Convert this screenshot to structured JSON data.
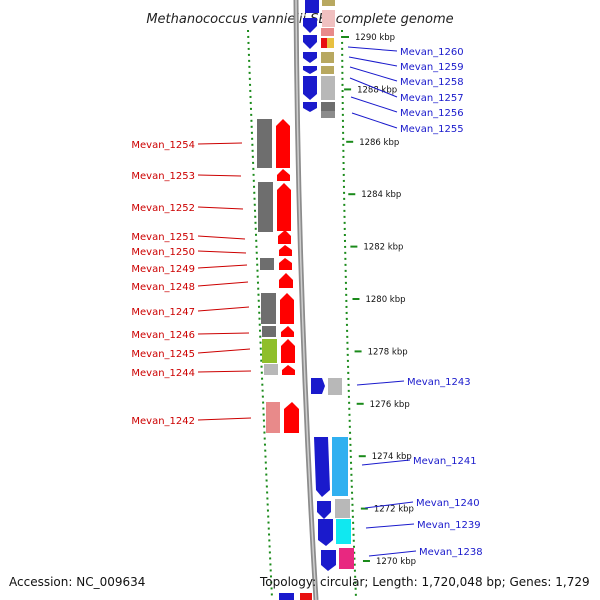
{
  "title": "Methanococcus vannielii SB, complete genome",
  "footer": {
    "accession": "Accession: NC_009634",
    "summary": "Topology: circular; Length: 1,720,048 bp; Genes: 1,729"
  },
  "colors": {
    "left_label": "#cc0000",
    "right_label": "#1a1acc",
    "dotted_track": "#1a8a1a",
    "backbone": "#8c8c8c"
  },
  "scale": {
    "unit": "kbp",
    "ticks": [
      {
        "value": 1290,
        "label": "1290 kbp"
      },
      {
        "value": 1288,
        "label": "1288 kbp"
      },
      {
        "value": 1286,
        "label": "1286 kbp"
      },
      {
        "value": 1284,
        "label": "1284 kbp"
      },
      {
        "value": 1282,
        "label": "1282 kbp"
      },
      {
        "value": 1280,
        "label": "1280 kbp"
      },
      {
        "value": 1278,
        "label": "1278 kbp"
      },
      {
        "value": 1276,
        "label": "1276 kbp"
      },
      {
        "value": 1274,
        "label": "1274 kbp"
      },
      {
        "value": 1272,
        "label": "1272 kbp"
      },
      {
        "value": 1270,
        "label": "1270 kbp"
      }
    ]
  },
  "left_genes": [
    {
      "label": "Mevan_1254",
      "strand": "-"
    },
    {
      "label": "Mevan_1253",
      "strand": "-"
    },
    {
      "label": "Mevan_1252",
      "strand": "-"
    },
    {
      "label": "Mevan_1251",
      "strand": "-"
    },
    {
      "label": "Mevan_1250",
      "strand": "-"
    },
    {
      "label": "Mevan_1249",
      "strand": "-"
    },
    {
      "label": "Mevan_1248",
      "strand": "-"
    },
    {
      "label": "Mevan_1247",
      "strand": "-"
    },
    {
      "label": "Mevan_1246",
      "strand": "-"
    },
    {
      "label": "Mevan_1245",
      "strand": "-"
    },
    {
      "label": "Mevan_1244",
      "strand": "-"
    },
    {
      "label": "Mevan_1242",
      "strand": "-"
    }
  ],
  "right_genes": [
    {
      "label": "Mevan_1260",
      "strand": "+"
    },
    {
      "label": "Mevan_1259",
      "strand": "+"
    },
    {
      "label": "Mevan_1258",
      "strand": "+"
    },
    {
      "label": "Mevan_1257",
      "strand": "+"
    },
    {
      "label": "Mevan_1256",
      "strand": "+"
    },
    {
      "label": "Mevan_1255",
      "strand": "+"
    },
    {
      "label": "Mevan_1243",
      "strand": "+"
    },
    {
      "label": "Mevan_1241",
      "strand": "+"
    },
    {
      "label": "Mevan_1240",
      "strand": "+"
    },
    {
      "label": "Mevan_1239",
      "strand": "+"
    },
    {
      "label": "Mevan_1238",
      "strand": "+"
    }
  ]
}
